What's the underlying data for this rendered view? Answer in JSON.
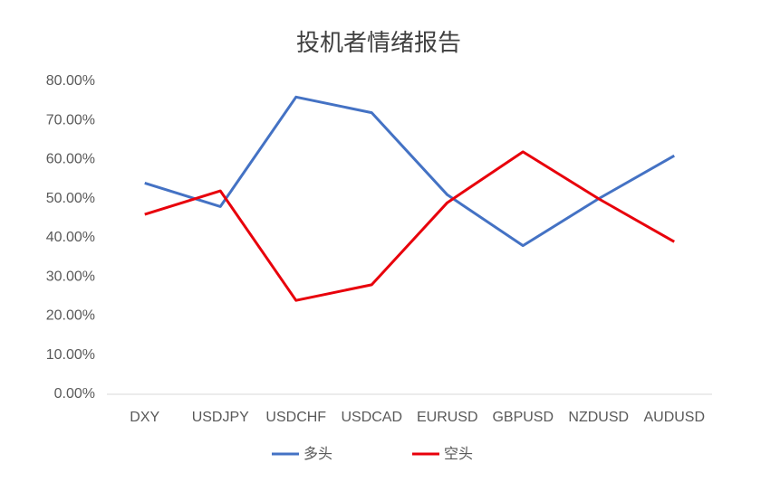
{
  "chart_data": {
    "type": "line",
    "title": "投机者情绪报告",
    "categories": [
      "DXY",
      "USDJPY",
      "USDCHF",
      "USDCAD",
      "EURUSD",
      "GBPUSD",
      "NZDUSD",
      "AUDUSD"
    ],
    "series": [
      {
        "name": "多头",
        "color": "#4472c4",
        "values": [
          54,
          48,
          76,
          72,
          51,
          38,
          50,
          61
        ]
      },
      {
        "name": "空头",
        "color": "#e8000b",
        "values": [
          46,
          52,
          24,
          28,
          49,
          62,
          50,
          39
        ]
      }
    ],
    "ylim": [
      0,
      80
    ],
    "yticks": [
      {
        "value": 0,
        "label": "0.00%"
      },
      {
        "value": 10,
        "label": "10.00%"
      },
      {
        "value": 20,
        "label": "20.00%"
      },
      {
        "value": 30,
        "label": "30.00%"
      },
      {
        "value": 40,
        "label": "40.00%"
      },
      {
        "value": 50,
        "label": "50.00%"
      },
      {
        "value": 60,
        "label": "60.00%"
      },
      {
        "value": 70,
        "label": "70.00%"
      },
      {
        "value": 80,
        "label": "80.00%"
      }
    ],
    "grid": false,
    "legend": "bottom"
  }
}
